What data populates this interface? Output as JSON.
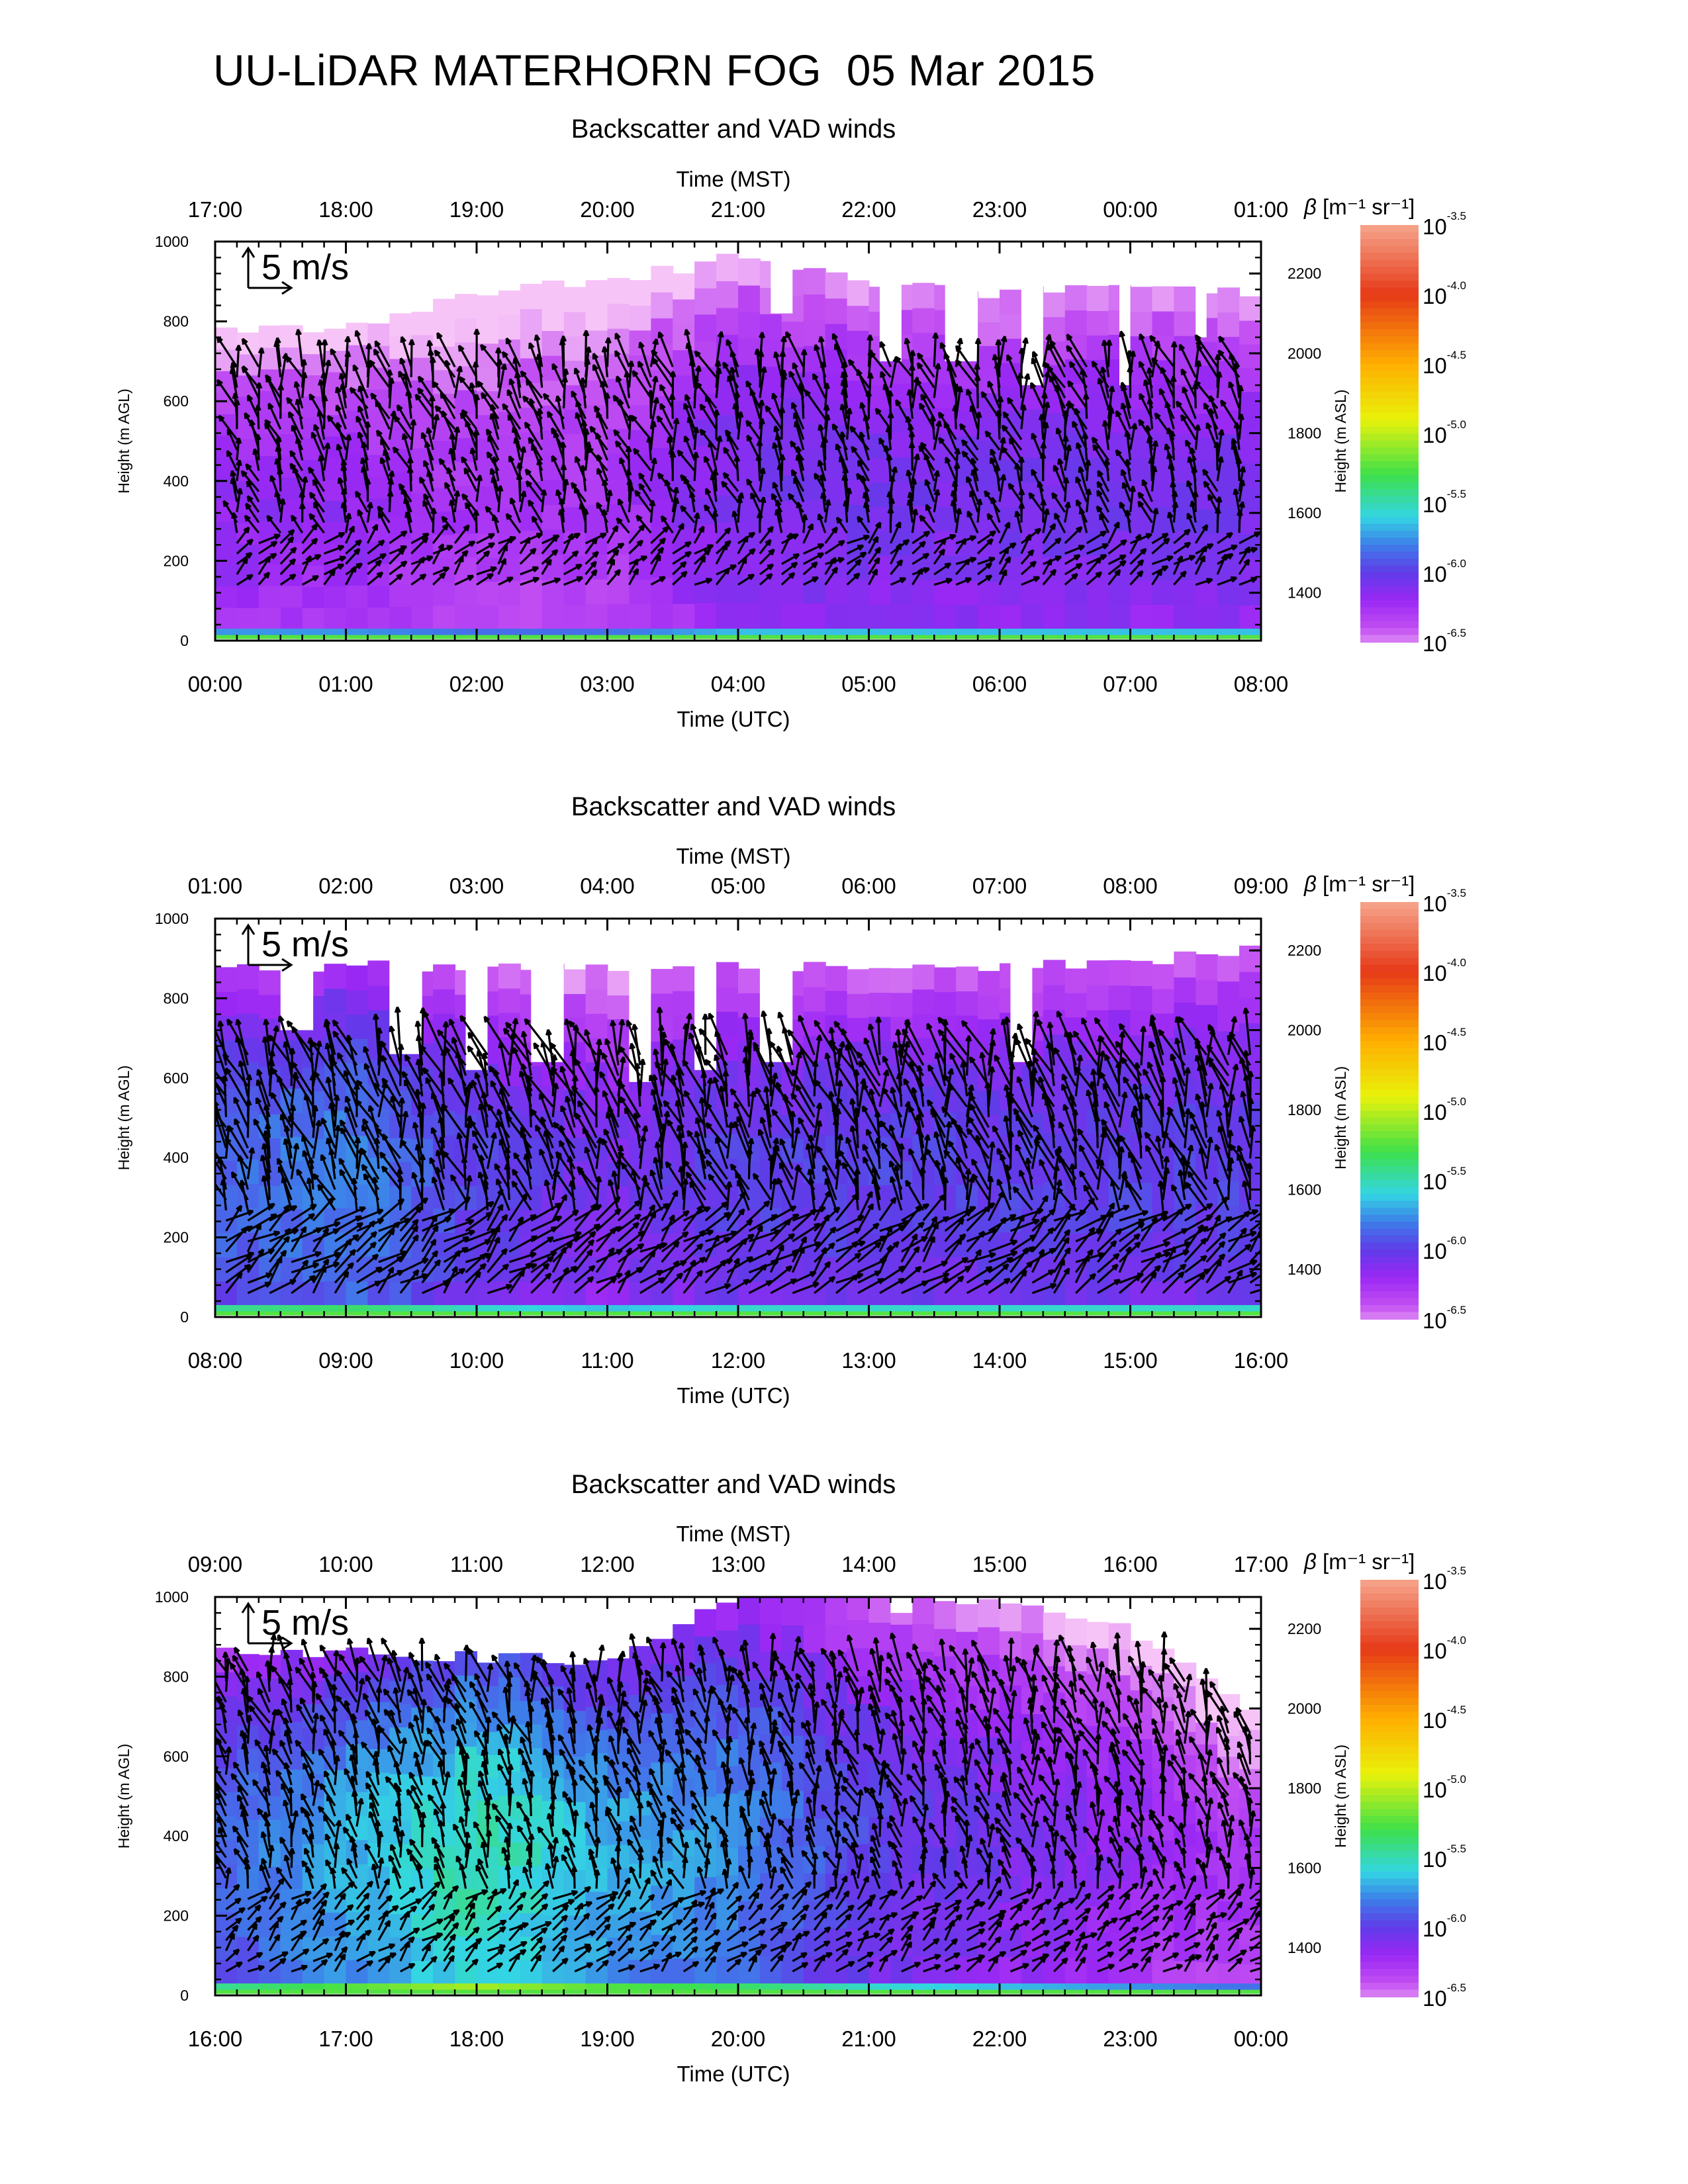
{
  "figure": {
    "title": "UU-LiDAR MATERHORN FOG  05 Mar 2015",
    "colors": {
      "axis": "#000000",
      "arrow": "#000000",
      "background": "#ffffff"
    }
  },
  "colorbar": {
    "title_symbol": "β",
    "title_units": "[m⁻¹ sr⁻¹]",
    "tick_base": "10",
    "tick_exponents": [
      "-3.5",
      "-4.0",
      "-4.5",
      "-5.0",
      "-5.5",
      "-6.0",
      "-6.5"
    ],
    "colors": [
      "#f4a28a",
      "#d93a1e",
      "#ffb300",
      "#ffff00",
      "#3cde2a",
      "#27c9d9",
      "#3c6ee6",
      "#7a1ff2",
      "#b43cf0",
      "#f0b0f5"
    ]
  },
  "scale_arrow": {
    "label": "5 m/s"
  },
  "chart_data": [
    {
      "type": "heatmap",
      "title": "Backscatter and VAD winds",
      "xlabel_top": "Time (MST)",
      "xlabel_bottom": "Time (UTC)",
      "ylabel_left": "Height (m AGL)",
      "ylabel_right": "Height (m ASL)",
      "x_top_ticks": [
        "17:00",
        "18:00",
        "19:00",
        "20:00",
        "21:00",
        "22:00",
        "23:00",
        "00:00",
        "01:00"
      ],
      "x_bottom_ticks": [
        "00:00",
        "01:00",
        "02:00",
        "03:00",
        "04:00",
        "05:00",
        "06:00",
        "07:00",
        "08:00"
      ],
      "y_left_ticks": [
        "0",
        "200",
        "400",
        "600",
        "800",
        "1000"
      ],
      "y_right_ticks": [
        "1400",
        "1600",
        "1800",
        "2000",
        "2200"
      ],
      "ylim": [
        0,
        1000
      ],
      "ylim_right": [
        1280,
        2280
      ],
      "backscatter_profile": [
        {
          "time": "00:00",
          "top": 780,
          "log_beta": -6.3
        },
        {
          "time": "01:00",
          "top": 780,
          "log_beta": -6.3
        },
        {
          "time": "02:00",
          "top": 870,
          "log_beta": -6.4
        },
        {
          "time": "03:00",
          "top": 900,
          "log_beta": -6.4
        },
        {
          "time": "04:00",
          "top": 960,
          "log_beta": -6.2
        },
        {
          "time": "05:00",
          "top": 900,
          "log_beta": -6.2
        },
        {
          "time": "06:00",
          "top": 870,
          "log_beta": -6.2
        },
        {
          "time": "07:00",
          "top": 880,
          "log_beta": -6.2
        },
        {
          "time": "08:00",
          "top": 870,
          "log_beta": -6.2
        }
      ],
      "gaps": [
        {
          "from": "04:15",
          "to": "04:25",
          "below": 820
        },
        {
          "from": "05:05",
          "to": "05:15",
          "below": 700
        },
        {
          "from": "05:35",
          "to": "05:50",
          "below": 700
        },
        {
          "from": "06:10",
          "to": "06:20",
          "below": 640
        },
        {
          "from": "06:55",
          "to": "07:00",
          "below": 640
        },
        {
          "from": "07:30",
          "to": "07:35",
          "below": 760
        }
      ],
      "wind": {
        "start": "00:05",
        "end": "08:00",
        "low": 140,
        "high": 700,
        "speed_range": [
          2,
          8
        ]
      }
    },
    {
      "type": "heatmap",
      "title": "Backscatter and VAD winds",
      "xlabel_top": "Time (MST)",
      "xlabel_bottom": "Time (UTC)",
      "ylabel_left": "Height (m AGL)",
      "ylabel_right": "Height (m ASL)",
      "x_top_ticks": [
        "01:00",
        "02:00",
        "03:00",
        "04:00",
        "05:00",
        "06:00",
        "07:00",
        "08:00",
        "09:00"
      ],
      "x_bottom_ticks": [
        "08:00",
        "09:00",
        "10:00",
        "11:00",
        "12:00",
        "13:00",
        "14:00",
        "15:00",
        "16:00"
      ],
      "y_left_ticks": [
        "0",
        "200",
        "400",
        "600",
        "800",
        "1000"
      ],
      "y_right_ticks": [
        "1400",
        "1600",
        "1800",
        "2000",
        "2200"
      ],
      "ylim": [
        0,
        1000
      ],
      "ylim_right": [
        1280,
        2280
      ],
      "backscatter_profile": [
        {
          "time": "08:00",
          "top": 880,
          "log_beta": -6.0
        },
        {
          "time": "09:00",
          "top": 880,
          "log_beta": -5.9
        },
        {
          "time": "10:00",
          "top": 880,
          "log_beta": -6.1
        },
        {
          "time": "11:00",
          "top": 880,
          "log_beta": -6.2
        },
        {
          "time": "12:00",
          "top": 880,
          "log_beta": -6.1
        },
        {
          "time": "13:00",
          "top": 880,
          "log_beta": -6.1
        },
        {
          "time": "14:00",
          "top": 880,
          "log_beta": -6.1
        },
        {
          "time": "15:00",
          "top": 890,
          "log_beta": -6.1
        },
        {
          "time": "16:00",
          "top": 920,
          "log_beta": -6.1
        }
      ],
      "gaps": [
        {
          "from": "08:30",
          "to": "08:45",
          "below": 720
        },
        {
          "from": "09:20",
          "to": "09:35",
          "below": 660
        },
        {
          "from": "09:55",
          "to": "10:05",
          "below": 620
        },
        {
          "from": "10:25",
          "to": "10:40",
          "below": 640
        },
        {
          "from": "11:10",
          "to": "11:20",
          "below": 590
        },
        {
          "from": "11:40",
          "to": "11:50",
          "below": 620
        },
        {
          "from": "12:10",
          "to": "12:25",
          "below": 640
        },
        {
          "from": "14:05",
          "to": "14:15",
          "below": 640
        }
      ],
      "wind": {
        "start": "08:00",
        "end": "16:00",
        "low": 60,
        "high": 660,
        "speed_range": [
          4,
          10
        ]
      }
    },
    {
      "type": "heatmap",
      "title": "Backscatter and VAD winds",
      "xlabel_top": "Time (MST)",
      "xlabel_bottom": "Time (UTC)",
      "ylabel_left": "Height (m AGL)",
      "ylabel_right": "Height (m ASL)",
      "x_top_ticks": [
        "09:00",
        "10:00",
        "11:00",
        "12:00",
        "13:00",
        "14:00",
        "15:00",
        "16:00",
        "17:00"
      ],
      "x_bottom_ticks": [
        "16:00",
        "17:00",
        "18:00",
        "19:00",
        "20:00",
        "21:00",
        "22:00",
        "23:00",
        "00:00"
      ],
      "y_left_ticks": [
        "0",
        "200",
        "400",
        "600",
        "800",
        "1000"
      ],
      "y_right_ticks": [
        "1400",
        "1600",
        "1800",
        "2000",
        "2200"
      ],
      "ylim": [
        0,
        1000
      ],
      "ylim_right": [
        1280,
        2280
      ],
      "backscatter_profile": [
        {
          "time": "16:00",
          "top": 860,
          "log_beta": -6.0
        },
        {
          "time": "17:00",
          "top": 860,
          "log_beta": -5.8
        },
        {
          "time": "18:00",
          "top": 850,
          "log_beta": -5.6
        },
        {
          "time": "19:00",
          "top": 840,
          "log_beta": -5.8
        },
        {
          "time": "20:00",
          "top": 1000,
          "log_beta": -5.9
        },
        {
          "time": "21:00",
          "top": 1000,
          "log_beta": -6.1
        },
        {
          "time": "22:00",
          "top": 980,
          "log_beta": -6.2
        },
        {
          "time": "23:00",
          "top": 920,
          "log_beta": -6.3
        },
        {
          "time": "00:00",
          "top": 700,
          "log_beta": -6.4
        }
      ],
      "gaps": [
        {
          "from": "21:10",
          "to": "21:20",
          "below": 960
        }
      ],
      "wind": {
        "start": "16:00",
        "end": "00:00",
        "low": 60,
        "high": 820,
        "speed_range": [
          2,
          8
        ]
      }
    }
  ]
}
